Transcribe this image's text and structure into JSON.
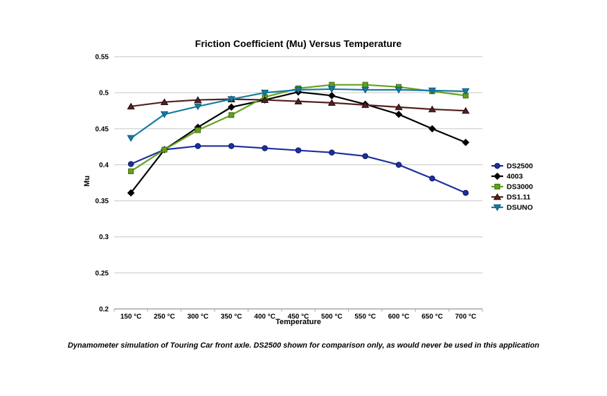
{
  "page": {
    "background": "#ffffff"
  },
  "chart_data": {
    "type": "line",
    "title": "Friction Coefficient (Mu) Versus Temperature",
    "xlabel": "Temperature",
    "ylabel": "Mu",
    "caption": "Dynamometer simulation of Touring Car front axle. DS2500 shown for comparison only, as would never be used in this application",
    "categories": [
      "150 °C",
      "250 °C",
      "300 °C",
      "350 °C",
      "400 °C",
      "450 °C",
      "500 °C",
      "550 °C",
      "600 °C",
      "650 °C",
      "700 °C"
    ],
    "ylim": [
      0.2,
      0.55
    ],
    "y_ticks": [
      0.55,
      0.5,
      0.45,
      0.4,
      0.35,
      0.3,
      0.25,
      0.2
    ],
    "grid": true,
    "legend_position": "right",
    "series": [
      {
        "name": "DS2500",
        "marker": "circle",
        "color": "#1b2f9e",
        "edge": "#0c1b63",
        "values": [
          0.401,
          0.421,
          0.426,
          0.426,
          0.423,
          0.42,
          0.417,
          0.412,
          0.4,
          0.381,
          0.361
        ]
      },
      {
        "name": "4003",
        "marker": "diamond",
        "color": "#000000",
        "edge": "#000000",
        "values": [
          0.361,
          0.421,
          0.452,
          0.48,
          0.49,
          0.501,
          0.496,
          0.484,
          0.47,
          0.45,
          0.431
        ]
      },
      {
        "name": "DS3000",
        "marker": "square",
        "color": "#64a11e",
        "edge": "#3f690f",
        "values": [
          0.391,
          0.421,
          0.448,
          0.469,
          0.494,
          0.506,
          0.511,
          0.511,
          0.508,
          0.502,
          0.496
        ]
      },
      {
        "name": "DS1.11",
        "marker": "triangle-up",
        "color": "#56201f",
        "edge": "#1f0b0b",
        "values": [
          0.481,
          0.487,
          0.49,
          0.491,
          0.49,
          0.488,
          0.486,
          0.483,
          0.48,
          0.477,
          0.475
        ]
      },
      {
        "name": "DSUNO",
        "marker": "triangle-down",
        "color": "#157ca3",
        "edge": "#0b5674",
        "values": [
          0.437,
          0.47,
          0.481,
          0.491,
          0.5,
          0.504,
          0.505,
          0.504,
          0.504,
          0.503,
          0.502
        ]
      }
    ]
  },
  "colors": {
    "gridline": "#c6c6c6",
    "axis": "#a6a6a6",
    "text": "#000000"
  }
}
